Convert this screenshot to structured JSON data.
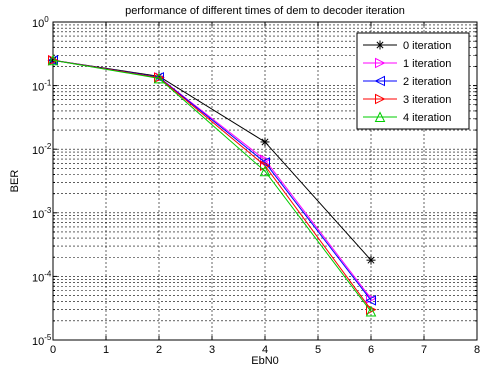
{
  "chart_data": {
    "type": "line",
    "title": "performance of different times of dem to decoder iteration",
    "xlabel": "EbN0",
    "ylabel": "BER",
    "xlim": [
      0,
      8
    ],
    "ylim": [
      1e-05,
      1
    ],
    "yscale": "log",
    "grid": true,
    "legend_position": "top-right",
    "x": [
      0,
      2,
      4,
      6
    ],
    "xticks": [
      "0",
      "1",
      "2",
      "3",
      "4",
      "5",
      "6",
      "7",
      "8"
    ],
    "yticks": [
      {
        "base": "10",
        "exp": "0",
        "value": 1
      },
      {
        "base": "10",
        "exp": "-1",
        "value": 0.1
      },
      {
        "base": "10",
        "exp": "-2",
        "value": 0.01
      },
      {
        "base": "10",
        "exp": "-3",
        "value": 0.001
      },
      {
        "base": "10",
        "exp": "-4",
        "value": 0.0001
      },
      {
        "base": "10",
        "exp": "-5",
        "value": 1e-05
      }
    ],
    "series": [
      {
        "name": "0 iteration",
        "color": "#000000",
        "marker": "asterisk",
        "values": [
          0.25,
          0.14,
          0.013,
          0.00018
        ]
      },
      {
        "name": "1 iteration",
        "color": "#ff00ff",
        "marker": "triangle-right",
        "values": [
          0.25,
          0.135,
          0.0068,
          4.5e-05
        ]
      },
      {
        "name": "2 iteration",
        "color": "#0000ff",
        "marker": "triangle-left",
        "values": [
          0.25,
          0.135,
          0.0062,
          4.2e-05
        ]
      },
      {
        "name": "3 iteration",
        "color": "#ff0000",
        "marker": "triangle-right",
        "values": [
          0.25,
          0.133,
          0.0055,
          3e-05
        ]
      },
      {
        "name": "4 iteration",
        "color": "#00cc00",
        "marker": "triangle-up",
        "values": [
          0.25,
          0.13,
          0.0045,
          2.8e-05
        ]
      }
    ]
  }
}
